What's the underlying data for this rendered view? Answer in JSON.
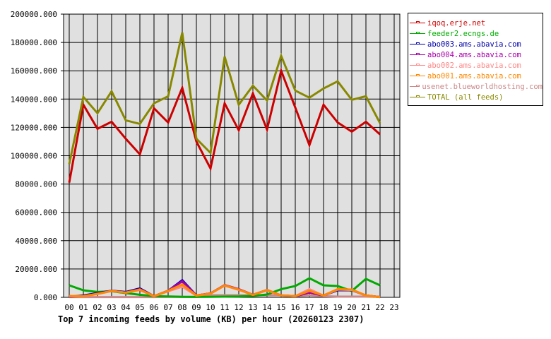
{
  "chart_data": {
    "type": "line",
    "title": "Top 7 incoming feeds by volume (KB) per hour (20260123 2307)",
    "xlabel": "",
    "ylabel": "",
    "ylim": [
      0,
      200000
    ],
    "yticks": [
      "0.000",
      "20000.000",
      "40000.000",
      "60000.000",
      "80000.000",
      "100000.000",
      "120000.000",
      "140000.000",
      "160000.000",
      "180000.000",
      "200000.000"
    ],
    "categories": [
      "00",
      "01",
      "02",
      "03",
      "04",
      "05",
      "06",
      "07",
      "08",
      "09",
      "10",
      "11",
      "12",
      "13",
      "14",
      "15",
      "16",
      "17",
      "18",
      "19",
      "20",
      "21",
      "22",
      "23"
    ],
    "grid": true,
    "legend_position": "right",
    "series": [
      {
        "name": "iqoq.erje.net",
        "color": "#cc0000",
        "values": [
          81000,
          136000,
          119000,
          124000,
          112000,
          101000,
          133500,
          123500,
          148000,
          110000,
          91000,
          137000,
          118000,
          144000,
          118500,
          160000,
          134000,
          107500,
          136000,
          123500,
          117000,
          124000,
          115000
        ]
      },
      {
        "name": "feeder2.ecngs.de",
        "color": "#00aa00",
        "values": [
          8500,
          5000,
          3800,
          4300,
          3000,
          1800,
          800,
          600,
          400,
          300,
          400,
          500,
          600,
          1000,
          2000,
          5800,
          8000,
          13500,
          8500,
          8000,
          4500,
          13000,
          8500
        ]
      },
      {
        "name": "abo003.ams.abavia.com",
        "color": "#0000aa",
        "values": [
          500,
          1300,
          3000,
          4700,
          3800,
          6300,
          800,
          4600,
          12100,
          1300,
          2700,
          8500,
          5500,
          1800,
          5200,
          1300,
          800,
          3500,
          1300,
          5000,
          5000,
          1300,
          200
        ]
      },
      {
        "name": "abo004.ams.abavia.com",
        "color": "#aa00aa",
        "values": [
          500,
          800,
          2600,
          4600,
          3400,
          5800,
          800,
          4700,
          11300,
          1300,
          2800,
          8700,
          5800,
          1800,
          5100,
          1300,
          800,
          3500,
          1300,
          5600,
          5300,
          1300,
          200
        ]
      },
      {
        "name": "abo002.ams.abavia.com",
        "color": "#ff8888",
        "values": [
          800,
          700,
          2300,
          4500,
          3300,
          5200,
          800,
          4300,
          7500,
          1200,
          2600,
          8300,
          5300,
          1700,
          4900,
          1300,
          800,
          5800,
          1200,
          5500,
          5200,
          1200,
          200
        ]
      },
      {
        "name": "abo001.ams.abavia.com",
        "color": "#ff8800",
        "values": [
          1000,
          800,
          2500,
          4500,
          3300,
          5500,
          800,
          4600,
          9100,
          1300,
          2700,
          8500,
          5500,
          1800,
          5200,
          1300,
          800,
          4600,
          1300,
          5800,
          5500,
          1300,
          200
        ]
      },
      {
        "name": "usenet.blueworldhosting.com",
        "color": "#cc8888",
        "values": [
          200,
          200,
          200,
          200,
          200,
          200,
          200,
          300,
          300,
          300,
          1500,
          1500,
          1500,
          1500,
          1500,
          1500,
          800,
          1500,
          800,
          500,
          500,
          500,
          300
        ]
      },
      {
        "name": "TOTAL (all feeds)",
        "color": "#888800",
        "values": [
          94000,
          141500,
          130000,
          145500,
          125000,
          122500,
          137000,
          142000,
          187000,
          112000,
          102000,
          170000,
          136000,
          149500,
          139000,
          170500,
          146000,
          141000,
          147500,
          152500,
          139500,
          142000,
          123000
        ]
      }
    ]
  },
  "legend": {
    "items": [
      {
        "label": "iqoq.erje.net",
        "color": "#cc0000"
      },
      {
        "label": "feeder2.ecngs.de",
        "color": "#00aa00"
      },
      {
        "label": "abo003.ams.abavia.com",
        "color": "#0000aa"
      },
      {
        "label": "abo004.ams.abavia.com",
        "color": "#aa00aa"
      },
      {
        "label": "abo002.ams.abavia.com",
        "color": "#ff8888"
      },
      {
        "label": "abo001.ams.abavia.com",
        "color": "#ff8800"
      },
      {
        "label": "usenet.blueworldhosting.com",
        "color": "#cc8888"
      },
      {
        "label": "TOTAL (all feeds)",
        "color": "#888800"
      }
    ]
  },
  "caption": "Top 7 incoming feeds by volume (KB) per hour (20260123 2307)"
}
